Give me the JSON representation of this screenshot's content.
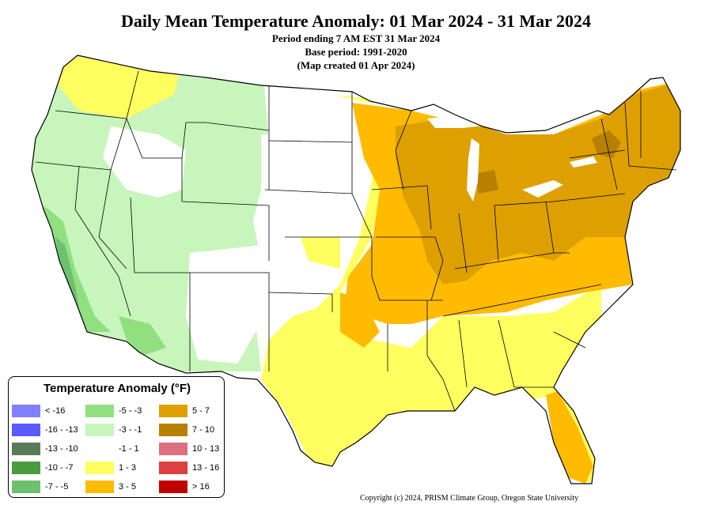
{
  "title": "Daily Mean Temperature Anomaly: 01 Mar 2024 - 31 Mar 2024",
  "subtitle_lines": [
    "Period ending 7 AM EST 31 Mar 2024",
    "Base period: 1991-2020",
    "(Map created 01 Apr 2024)"
  ],
  "legend": {
    "title": "Temperature Anomaly (°F)",
    "items": [
      {
        "label": "< -16",
        "color": "#8080ff"
      },
      {
        "label": "-16 - -13",
        "color": "#5a5aff"
      },
      {
        "label": "-13 - -10",
        "color": "#5a7a5a"
      },
      {
        "label": "-10 - -7",
        "color": "#4a9a40"
      },
      {
        "label": "-7 - -5",
        "color": "#6cc070"
      },
      {
        "label": "-5 - -3",
        "color": "#90e080"
      },
      {
        "label": "-3 - -1",
        "color": "#c8f5bc"
      },
      {
        "label": "-1 - 1",
        "color": "#ffffff"
      },
      {
        "label": "1 - 3",
        "color": "#ffff60"
      },
      {
        "label": "3 - 5",
        "color": "#ffbb00"
      },
      {
        "label": "5 - 7",
        "color": "#dda000"
      },
      {
        "label": "7 - 10",
        "color": "#b88000"
      },
      {
        "label": "10 - 13",
        "color": "#dd7080"
      },
      {
        "label": "13 - 16",
        "color": "#dd4040"
      },
      {
        "label": "> 16",
        "color": "#c00000"
      }
    ]
  },
  "copyright": "Copyright (c) 2024, PRISM Climate Group, Oregon State University"
}
